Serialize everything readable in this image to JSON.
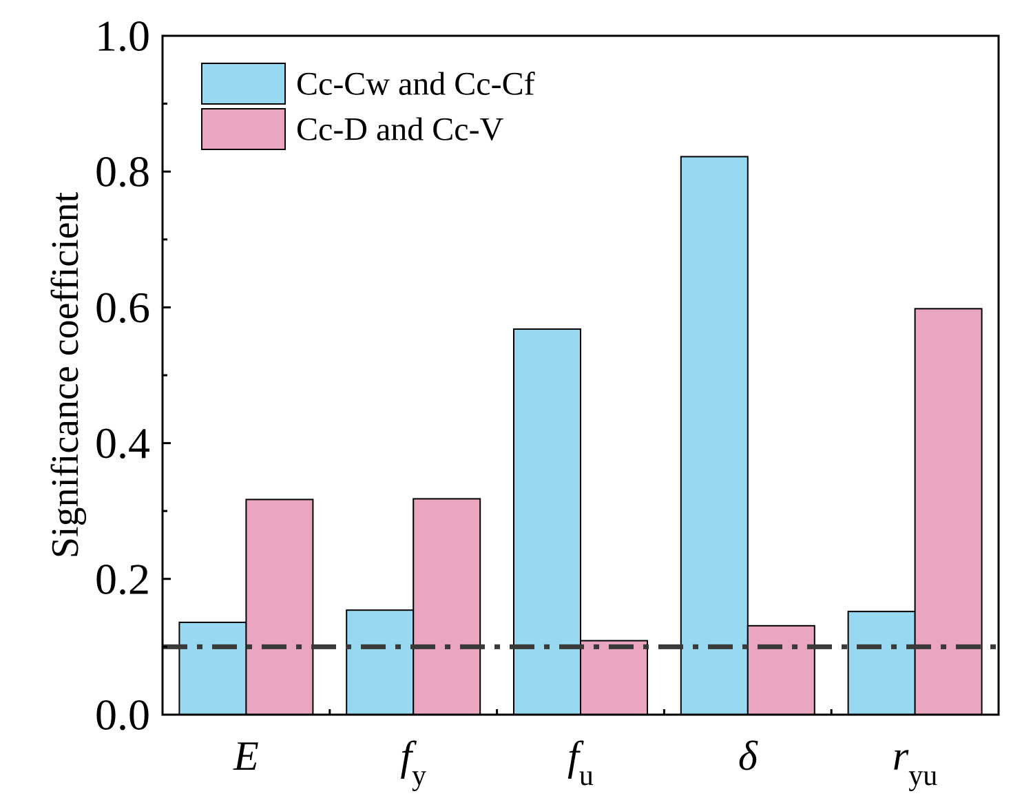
{
  "chart_data": {
    "type": "bar",
    "ylabel": "Significance coefficient",
    "xlabel": "",
    "ylim": [
      0,
      1.0
    ],
    "yticks": [
      "0.0",
      "0.2",
      "0.4",
      "0.6",
      "0.8",
      "1.0"
    ],
    "categories": [
      {
        "main": "E",
        "sub": ""
      },
      {
        "main": "f",
        "sub": "y"
      },
      {
        "main": "f",
        "sub": "u"
      },
      {
        "main": "δ",
        "sub": ""
      },
      {
        "main": "r",
        "sub": "yu"
      }
    ],
    "series": [
      {
        "name": "Cc-Cw and Cc-Cf",
        "color": "#98d8f0",
        "values": [
          0.136,
          0.154,
          0.568,
          0.822,
          0.152
        ]
      },
      {
        "name": "Cc-D and Cc-V",
        "color": "#eaa6c1",
        "values": [
          0.317,
          0.318,
          0.109,
          0.131,
          0.598
        ]
      }
    ],
    "reference_line": {
      "value": 0.1,
      "style": "dash-dot",
      "color": "#3a3a3a"
    },
    "grid": false,
    "legend_position": "top-left"
  }
}
